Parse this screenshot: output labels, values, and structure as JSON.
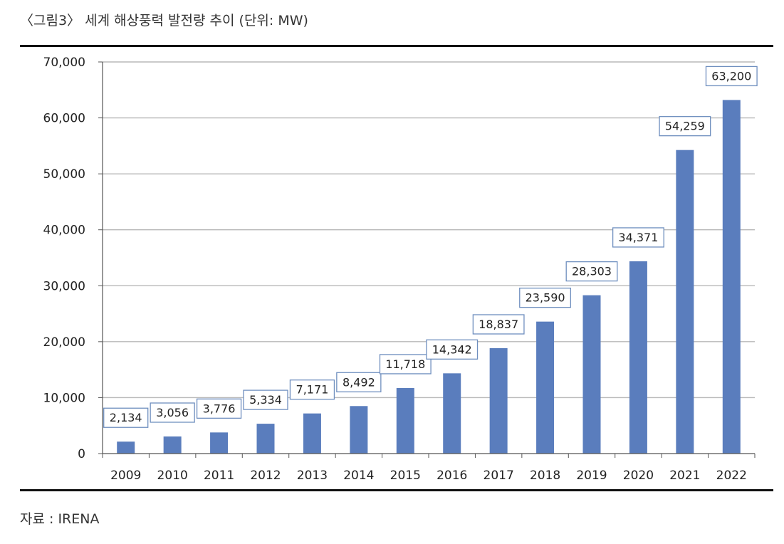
{
  "caption": "〈그림3〉 세계 해상풍력 발전량 추이 (단위: MW)",
  "source": "자료 : IRENA",
  "colors": {
    "bar": "#5a7dbd",
    "grid": "#b8b8b8",
    "label_border": "#6f8fbf"
  },
  "chart_data": {
    "type": "bar",
    "categories": [
      "2009",
      "2010",
      "2011",
      "2012",
      "2013",
      "2014",
      "2015",
      "2016",
      "2017",
      "2018",
      "2019",
      "2020",
      "2021",
      "2022"
    ],
    "values": [
      2134,
      3056,
      3776,
      5334,
      7171,
      8492,
      11718,
      14342,
      18837,
      23590,
      28303,
      34371,
      54259,
      63200
    ],
    "data_labels": [
      "2,134",
      "3,056",
      "3,776",
      "5,334",
      "7,171",
      "8,492",
      "11,718",
      "14,342",
      "18,837",
      "23,590",
      "28,303",
      "34,371",
      "54,259",
      "63,200"
    ],
    "y_ticks": [
      "0",
      "10,000",
      "20,000",
      "30,000",
      "40,000",
      "50,000",
      "60,000",
      "70,000"
    ],
    "ylim": [
      0,
      70000
    ],
    "grid": true,
    "legend": "none"
  }
}
